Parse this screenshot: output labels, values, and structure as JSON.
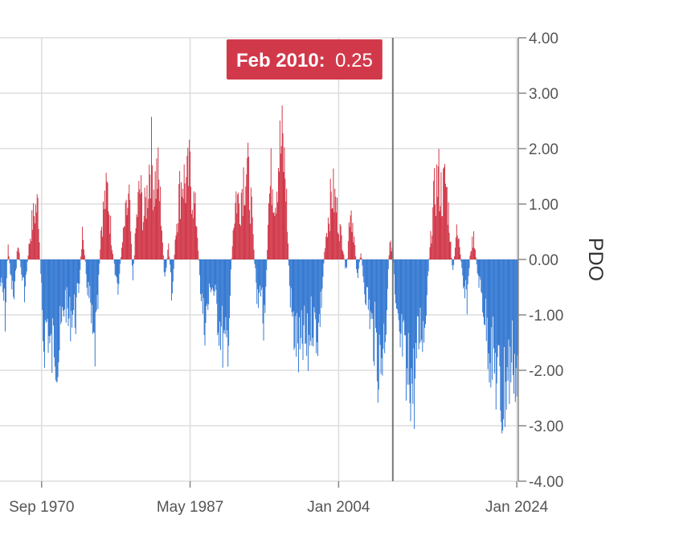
{
  "chart_data": {
    "type": "bar",
    "title": "",
    "ylabel": "PDO",
    "xlabel": "",
    "ylim": [
      -4,
      4
    ],
    "yticks": [
      "4.00",
      "3.00",
      "2.00",
      "1.00",
      "0.00",
      "-1.00",
      "-2.00",
      "-3.00",
      "-4.00"
    ],
    "yticks_values": [
      4,
      3,
      2,
      1,
      0,
      -1,
      -2,
      -3,
      -4
    ],
    "x_range": [
      "1966-01",
      "2024-03"
    ],
    "xticks": [
      "Sep 1970",
      "May 1987",
      "Jan 2004",
      "Jan 2024"
    ],
    "xticks_values": [
      "1970-09",
      "1987-05",
      "2004-01",
      "2024-01"
    ],
    "grid": true,
    "colors": {
      "positive": "#d1394a",
      "negative": "#3579d2",
      "tooltip_bg": "#d1394a",
      "crosshair": "#777777",
      "grid": "#dddddd"
    },
    "tooltip": {
      "date": "Feb 2010:",
      "value": "0.25",
      "x": "2010-02"
    },
    "series": [
      {
        "values": [
          [
            1966,
            -0.5
          ],
          [
            1966.3,
            -0.7
          ],
          [
            1966.6,
            -1.2
          ],
          [
            1966.9,
            0.3
          ],
          [
            1967.2,
            -0.4
          ],
          [
            1967.6,
            -0.9
          ],
          [
            1968.0,
            0.4
          ],
          [
            1968.4,
            -0.3
          ],
          [
            1968.8,
            -0.7
          ],
          [
            1969.2,
            0.2
          ],
          [
            1969.6,
            0.8
          ],
          [
            1970.0,
            1.1
          ],
          [
            1970.3,
            1.2
          ],
          [
            1970.6,
            -0.6
          ],
          [
            1970.9,
            -1.8
          ],
          [
            1971.3,
            -1.3
          ],
          [
            1971.7,
            -2.2
          ],
          [
            1972.1,
            -1.7
          ],
          [
            1972.5,
            -2.1
          ],
          [
            1972.9,
            -1.6
          ],
          [
            1973.3,
            -0.8
          ],
          [
            1973.7,
            -1.4
          ],
          [
            1974.1,
            -1.1
          ],
          [
            1974.5,
            -1.2
          ],
          [
            1974.9,
            -0.5
          ],
          [
            1975.3,
            0.7
          ],
          [
            1975.7,
            -0.4
          ],
          [
            1976.1,
            -1.0
          ],
          [
            1976.5,
            -2.1
          ],
          [
            1976.9,
            -1.5
          ],
          [
            1977.3,
            0.6
          ],
          [
            1977.7,
            1.2
          ],
          [
            1978.1,
            1.5
          ],
          [
            1978.5,
            0.5
          ],
          [
            1978.9,
            -0.3
          ],
          [
            1979.3,
            -0.6
          ],
          [
            1979.7,
            0.3
          ],
          [
            1980.1,
            0.9
          ],
          [
            1980.5,
            1.3
          ],
          [
            1980.9,
            -0.4
          ],
          [
            1981.3,
            0.8
          ],
          [
            1981.7,
            1.6
          ],
          [
            1982.1,
            0.9
          ],
          [
            1982.5,
            1.4
          ],
          [
            1982.9,
            2.4
          ],
          [
            1983.3,
            1.6
          ],
          [
            1983.7,
            1.9
          ],
          [
            1984.1,
            1.0
          ],
          [
            1984.5,
            -0.6
          ],
          [
            1984.9,
            0.4
          ],
          [
            1985.3,
            -0.9
          ],
          [
            1985.7,
            0.6
          ],
          [
            1986.1,
            1.4
          ],
          [
            1986.5,
            1.8
          ],
          [
            1986.9,
            1.6
          ],
          [
            1987.3,
            1.9
          ],
          [
            1987.7,
            1.3
          ],
          [
            1988.1,
            0.8
          ],
          [
            1988.5,
            -0.6
          ],
          [
            1988.9,
            -1.4
          ],
          [
            1989.3,
            -1.1
          ],
          [
            1989.7,
            -0.5
          ],
          [
            1990.1,
            -0.8
          ],
          [
            1990.5,
            -1.3
          ],
          [
            1990.9,
            -1.6
          ],
          [
            1991.3,
            -2.2
          ],
          [
            1991.7,
            -1.4
          ],
          [
            1992.1,
            0.5
          ],
          [
            1992.5,
            1.4
          ],
          [
            1992.9,
            1.2
          ],
          [
            1993.3,
            1.8
          ],
          [
            1993.7,
            2.0
          ],
          [
            1994.1,
            1.4
          ],
          [
            1994.5,
            0.2
          ],
          [
            1994.9,
            -1.1
          ],
          [
            1995.3,
            -0.5
          ],
          [
            1995.7,
            -1.9
          ],
          [
            1996.1,
            1.1
          ],
          [
            1996.5,
            1.9
          ],
          [
            1996.9,
            1.3
          ],
          [
            1997.3,
            2.3
          ],
          [
            1997.7,
            2.5
          ],
          [
            1998.1,
            1.6
          ],
          [
            1998.5,
            -0.6
          ],
          [
            1998.9,
            -1.5
          ],
          [
            1999.3,
            -1.8
          ],
          [
            1999.7,
            -2.2
          ],
          [
            2000.1,
            -1.7
          ],
          [
            2000.5,
            -2.1
          ],
          [
            2000.9,
            -1.3
          ],
          [
            2001.3,
            -1.4
          ],
          [
            2001.7,
            -1.6
          ],
          [
            2002.1,
            -0.8
          ],
          [
            2002.5,
            0.4
          ],
          [
            2002.9,
            1.0
          ],
          [
            2003.3,
            1.5
          ],
          [
            2003.7,
            1.2
          ],
          [
            2004.1,
            0.7
          ],
          [
            2004.5,
            0.3
          ],
          [
            2004.9,
            -0.4
          ],
          [
            2005.3,
            1.3
          ],
          [
            2005.7,
            0.6
          ],
          [
            2006.1,
            -0.4
          ],
          [
            2006.5,
            0.2
          ],
          [
            2006.9,
            -0.6
          ],
          [
            2007.3,
            -0.9
          ],
          [
            2007.7,
            -1.5
          ],
          [
            2008.1,
            -1.7
          ],
          [
            2008.5,
            -2.3
          ],
          [
            2008.9,
            -2.0
          ],
          [
            2009.3,
            -1.4
          ],
          [
            2009.7,
            0.3
          ],
          [
            2010.1,
            0.25
          ],
          [
            2010.4,
            -1.2
          ],
          [
            2010.8,
            -2.0
          ],
          [
            2011.2,
            -1.8
          ],
          [
            2011.6,
            -2.9
          ],
          [
            2012.0,
            -2.4
          ],
          [
            2012.4,
            -2.9
          ],
          [
            2012.8,
            -2.1
          ],
          [
            2013.2,
            -1.4
          ],
          [
            2013.6,
            -1.6
          ],
          [
            2014.0,
            -0.4
          ],
          [
            2014.4,
            0.6
          ],
          [
            2014.8,
            1.5
          ],
          [
            2015.2,
            1.8
          ],
          [
            2015.6,
            1.4
          ],
          [
            2016.0,
            1.7
          ],
          [
            2016.4,
            0.9
          ],
          [
            2016.8,
            -0.4
          ],
          [
            2017.2,
            0.6
          ],
          [
            2017.6,
            0.3
          ],
          [
            2018.0,
            -0.7
          ],
          [
            2018.4,
            -0.9
          ],
          [
            2018.8,
            0.2
          ],
          [
            2019.2,
            0.5
          ],
          [
            2019.6,
            -0.3
          ],
          [
            2020.0,
            -0.7
          ],
          [
            2020.4,
            -1.2
          ],
          [
            2020.8,
            -1.8
          ],
          [
            2021.2,
            -2.1
          ],
          [
            2021.6,
            -2.4
          ],
          [
            2022.0,
            -2.8
          ],
          [
            2022.4,
            -3.1
          ],
          [
            2022.8,
            -2.6
          ],
          [
            2023.2,
            -2.4
          ],
          [
            2023.6,
            -2.0
          ],
          [
            2024.0,
            -2.7
          ]
        ]
      }
    ]
  }
}
